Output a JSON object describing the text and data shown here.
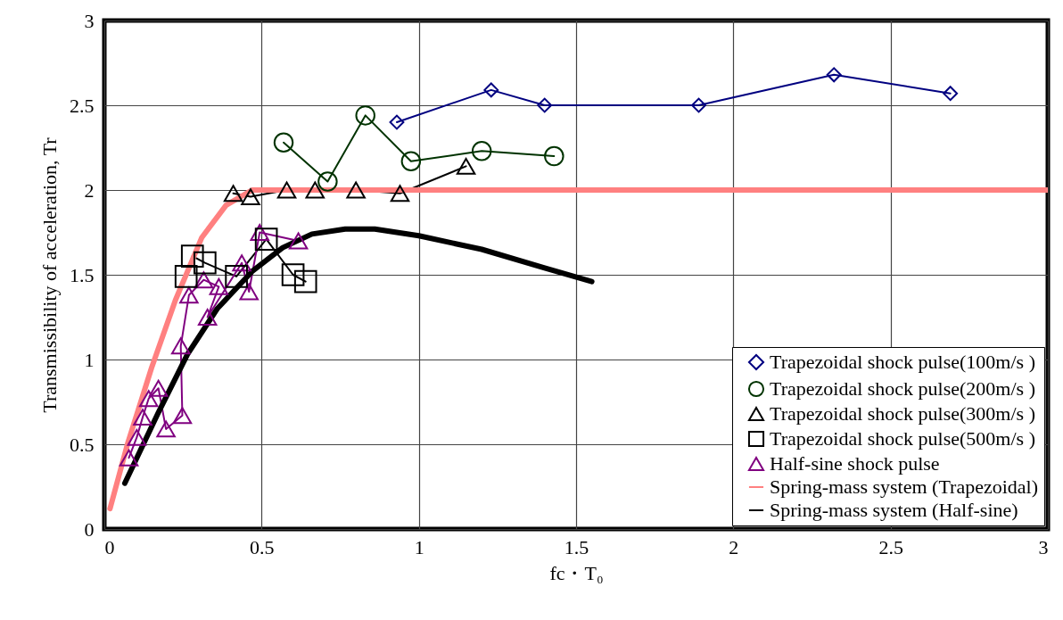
{
  "chart_data": {
    "type": "line",
    "xlabel": "fc・T₀",
    "ylabel": "Transmissibility of acceleration, Tr",
    "xlim": [
      0,
      3
    ],
    "ylim": [
      0,
      3
    ],
    "xticks": [
      0,
      0.5,
      1,
      1.5,
      2,
      2.5,
      3
    ],
    "yticks": [
      0,
      0.5,
      1,
      1.5,
      2,
      2.5,
      3
    ],
    "grid": true,
    "legend": "bottom right",
    "line_style": "solid",
    "series": [
      {
        "name": "Trapezoidal shock pulse(100m/s )",
        "color": "#000080",
        "marker": "diamond",
        "x": [
          0.93,
          1.23,
          1.4,
          1.89,
          2.32,
          2.69
        ],
        "values": [
          2.4,
          2.59,
          2.5,
          2.5,
          2.68,
          2.57
        ]
      },
      {
        "name": "Trapezoidal shock pulse(200m/s )",
        "color": "#003300",
        "marker": "circle",
        "x": [
          0.57,
          0.71,
          0.83,
          0.975,
          1.2,
          1.43
        ],
        "values": [
          2.28,
          2.05,
          2.44,
          2.17,
          2.23,
          2.2
        ]
      },
      {
        "name": "Trapezoidal shock pulse(300m/s )",
        "color": "#000000",
        "marker": "triangle",
        "x": [
          0.41,
          0.465,
          0.58,
          0.67,
          0.8,
          0.94,
          1.15
        ],
        "values": [
          1.98,
          1.96,
          2.0,
          2.0,
          2.0,
          1.98,
          2.14
        ]
      },
      {
        "name": "Trapezoidal shock pulse(500m/s )",
        "color": "#000000",
        "marker": "square",
        "x": [
          0.26,
          0.28,
          0.32,
          0.42,
          0.515,
          0.6,
          0.64
        ],
        "values": [
          1.49,
          1.61,
          1.57,
          1.49,
          1.71,
          1.5,
          1.46
        ]
      },
      {
        "name": "Half-sine shock pulse",
        "color": "#800080",
        "marker": "triangle",
        "x": [
          0.078,
          0.103,
          0.122,
          0.141,
          0.172,
          0.196,
          0.248,
          0.243,
          0.269,
          0.316,
          0.364,
          0.328,
          0.437,
          0.46,
          0.494,
          0.617
        ],
        "values": [
          0.42,
          0.54,
          0.66,
          0.77,
          0.83,
          0.59,
          0.67,
          1.08,
          1.38,
          1.47,
          1.43,
          1.25,
          1.57,
          1.4,
          1.75,
          1.7
        ]
      },
      {
        "name": "Spring-mass system (Trapezoidal)",
        "color": "#ff8080",
        "marker": "none",
        "x": [
          0.018,
          0.075,
          0.15,
          0.226,
          0.31,
          0.387,
          0.47,
          0.6,
          3
        ],
        "values": [
          0.12,
          0.51,
          0.95,
          1.35,
          1.72,
          1.91,
          2.0,
          2.0,
          2.0
        ]
      },
      {
        "name": "Spring-mass system (Half-sine)",
        "color": "#000000",
        "marker": "none",
        "x": [
          0.065,
          0.17,
          0.264,
          0.359,
          0.47,
          0.567,
          0.66,
          0.766,
          0.86,
          1.0,
          1.2,
          1.4,
          1.55
        ],
        "values": [
          0.27,
          0.68,
          1.03,
          1.3,
          1.52,
          1.66,
          1.74,
          1.77,
          1.77,
          1.73,
          1.65,
          1.54,
          1.46
        ]
      }
    ]
  }
}
